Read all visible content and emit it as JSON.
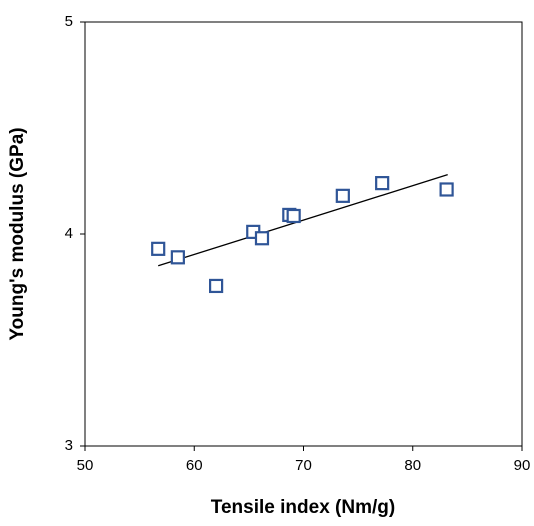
{
  "chart_data": {
    "type": "scatter",
    "x_label": "Tensile index (Nm/g)",
    "y_label": "Young's modulus (GPa)",
    "xlim": [
      50,
      90
    ],
    "xticks": [
      50,
      60,
      70,
      80,
      90
    ],
    "ylim": [
      3,
      5
    ],
    "yticks": [
      3,
      4,
      5
    ],
    "series": [
      {
        "color": "#2f5597",
        "x": [
          56.7,
          58.5,
          62.0,
          65.4,
          66.2,
          68.7,
          69.1,
          73.6,
          77.2,
          83.1
        ],
        "values": [
          3.93,
          3.89,
          3.755,
          4.01,
          3.98,
          4.09,
          4.085,
          4.18,
          4.24,
          4.21
        ]
      }
    ],
    "trendline": {
      "color": "#000000",
      "x": [
        56.7,
        83.2
      ],
      "values": [
        3.85,
        4.28
      ]
    }
  }
}
